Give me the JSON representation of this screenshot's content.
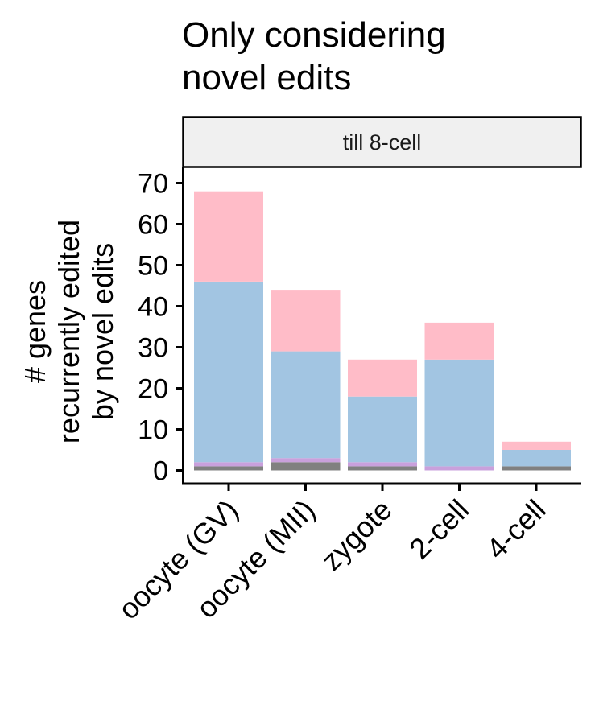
{
  "chart_data": {
    "type": "bar",
    "stacked": true,
    "title": "Only considering novel edits",
    "title_lines": [
      "Only considering",
      "novel edits"
    ],
    "facet": "till 8-cell",
    "ylabel": "# genes recurrently edited by novel edits",
    "ylabel_lines": [
      "# genes",
      "recurrently edited",
      "by novel edits"
    ],
    "xlabel": "",
    "ylim": [
      0,
      70
    ],
    "yticks": [
      0,
      10,
      20,
      30,
      40,
      50,
      60,
      70
    ],
    "categories": [
      "oocyte (GV)",
      "oocyte (MII)",
      "zygote",
      "2-cell",
      "4-cell"
    ],
    "legend": "none",
    "grid": false,
    "series": [
      {
        "color": "#808080",
        "values": [
          1,
          2,
          1,
          0,
          1
        ]
      },
      {
        "color": "#c9a0dc",
        "values": [
          1,
          1,
          1,
          1,
          0
        ]
      },
      {
        "color": "#a2c5e2",
        "values": [
          44,
          26,
          16,
          26,
          4
        ]
      },
      {
        "color": "#ffbcc8",
        "values": [
          22,
          15,
          9,
          9,
          2
        ]
      }
    ]
  }
}
